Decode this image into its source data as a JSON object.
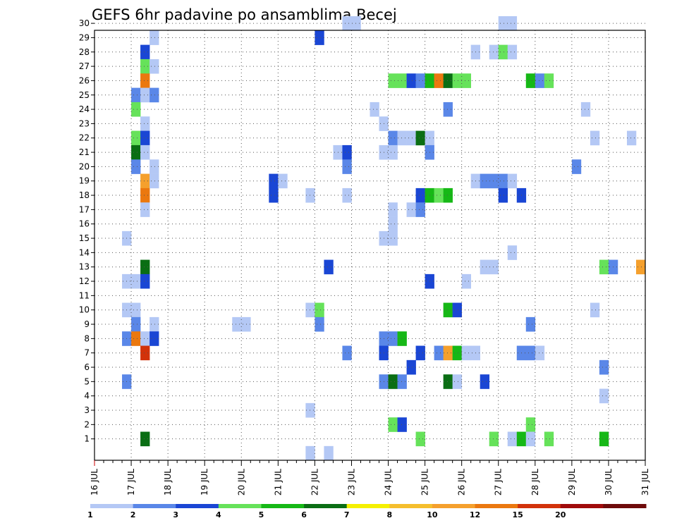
{
  "chart_data": {
    "type": "heatmap",
    "title": "GEFS 6hr padavine po ansamblima Becej",
    "y_categories": [
      "1",
      "2",
      "3",
      "4",
      "5",
      "6",
      "7",
      "8",
      "9",
      "10",
      "11",
      "12",
      "13",
      "14",
      "15",
      "16",
      "17",
      "18",
      "19",
      "20",
      "21",
      "22",
      "23",
      "24",
      "25",
      "26",
      "27",
      "28",
      "29",
      "30"
    ],
    "x_ticks": [
      "16 JUL",
      "17 JUL",
      "18 JUL",
      "19 JUL",
      "20 JUL",
      "21 JUL",
      "22 JUL",
      "23 JUL",
      "24 JUL",
      "25 JUL",
      "26 JUL",
      "27 JUL",
      "28 JUL",
      "29 JUL",
      "30 JUL",
      "31 JUL"
    ],
    "xlim": [
      16,
      31
    ],
    "grid": true,
    "legend": {
      "placement": "bottom",
      "labels": [
        "1",
        "2",
        "3",
        "4",
        "5",
        "6",
        "7",
        "8",
        "10",
        "12",
        "15",
        "20"
      ],
      "colors": [
        "#b4c8f5",
        "#5a87e8",
        "#1a46d4",
        "#66e25a",
        "#16b816",
        "#0a6e14",
        "#f5f000",
        "#f5be2d",
        "#f5a02d",
        "#eb780f",
        "#d2320a",
        "#a00a0a",
        "#6e0a0a"
      ]
    },
    "cells": [
      [
        30,
        22.75,
        1
      ],
      [
        30,
        23.0,
        1
      ],
      [
        30,
        27.0,
        1
      ],
      [
        30,
        27.25,
        1
      ],
      [
        29,
        17.5,
        1
      ],
      [
        29,
        22.0,
        3
      ],
      [
        28,
        17.25,
        3
      ],
      [
        28,
        26.25,
        1
      ],
      [
        28,
        26.75,
        1
      ],
      [
        28,
        27.0,
        4
      ],
      [
        28,
        27.25,
        1
      ],
      [
        27,
        17.25,
        4
      ],
      [
        27,
        17.5,
        1
      ],
      [
        26,
        17.25,
        12
      ],
      [
        26,
        24.0,
        4
      ],
      [
        26,
        24.25,
        4
      ],
      [
        26,
        24.5,
        3
      ],
      [
        26,
        24.75,
        2
      ],
      [
        26,
        25.0,
        5
      ],
      [
        26,
        25.25,
        12
      ],
      [
        26,
        25.5,
        6
      ],
      [
        26,
        25.75,
        4
      ],
      [
        26,
        26.0,
        4
      ],
      [
        26,
        27.75,
        5
      ],
      [
        26,
        28.0,
        2
      ],
      [
        26,
        28.25,
        4
      ],
      [
        25,
        17.0,
        2
      ],
      [
        25,
        17.25,
        1
      ],
      [
        25,
        17.5,
        2
      ],
      [
        24,
        17.0,
        4
      ],
      [
        24,
        23.5,
        1
      ],
      [
        24,
        25.5,
        2
      ],
      [
        24,
        29.25,
        1
      ],
      [
        23,
        17.25,
        1
      ],
      [
        23,
        23.75,
        1
      ],
      [
        22,
        17.0,
        4
      ],
      [
        22,
        17.25,
        3
      ],
      [
        22,
        24.0,
        2
      ],
      [
        22,
        24.25,
        1
      ],
      [
        22,
        24.5,
        1
      ],
      [
        22,
        24.75,
        6
      ],
      [
        22,
        25.0,
        1
      ],
      [
        22,
        29.5,
        1
      ],
      [
        22,
        30.5,
        1
      ],
      [
        21,
        17.0,
        6
      ],
      [
        21,
        17.25,
        1
      ],
      [
        21,
        22.5,
        1
      ],
      [
        21,
        22.75,
        3
      ],
      [
        21,
        23.75,
        1
      ],
      [
        21,
        24.0,
        1
      ],
      [
        21,
        25.0,
        2
      ],
      [
        20,
        17.0,
        2
      ],
      [
        20,
        17.5,
        1
      ],
      [
        20,
        22.75,
        2
      ],
      [
        20,
        29.0,
        2
      ],
      [
        19,
        17.25,
        10
      ],
      [
        19,
        17.5,
        1
      ],
      [
        19,
        20.75,
        3
      ],
      [
        19,
        21.0,
        1
      ],
      [
        19,
        26.25,
        1
      ],
      [
        19,
        26.5,
        2
      ],
      [
        19,
        26.75,
        2
      ],
      [
        19,
        27.0,
        2
      ],
      [
        19,
        27.25,
        1
      ],
      [
        18,
        17.25,
        12
      ],
      [
        18,
        20.75,
        3
      ],
      [
        18,
        21.75,
        1
      ],
      [
        18,
        22.75,
        1
      ],
      [
        18,
        24.75,
        3
      ],
      [
        18,
        25.0,
        5
      ],
      [
        18,
        25.25,
        4
      ],
      [
        18,
        25.5,
        5
      ],
      [
        18,
        27.0,
        3
      ],
      [
        18,
        27.5,
        3
      ],
      [
        17,
        17.25,
        1
      ],
      [
        17,
        24.0,
        1
      ],
      [
        17,
        24.5,
        1
      ],
      [
        17,
        24.75,
        2
      ],
      [
        16,
        24.0,
        1
      ],
      [
        15,
        16.75,
        1
      ],
      [
        15,
        23.75,
        1
      ],
      [
        15,
        24.0,
        1
      ],
      [
        14,
        27.25,
        1
      ],
      [
        13,
        17.25,
        6
      ],
      [
        13,
        22.25,
        3
      ],
      [
        13,
        26.5,
        1
      ],
      [
        13,
        26.75,
        1
      ],
      [
        13,
        29.75,
        4
      ],
      [
        13,
        30.0,
        2
      ],
      [
        13,
        30.75,
        10
      ],
      [
        12,
        16.75,
        1
      ],
      [
        12,
        17.0,
        1
      ],
      [
        12,
        17.25,
        3
      ],
      [
        12,
        25.0,
        3
      ],
      [
        12,
        26.0,
        1
      ],
      [
        10,
        16.75,
        1
      ],
      [
        10,
        17.0,
        1
      ],
      [
        10,
        21.75,
        1
      ],
      [
        10,
        22.0,
        4
      ],
      [
        10,
        25.5,
        5
      ],
      [
        10,
        25.75,
        3
      ],
      [
        10,
        29.5,
        1
      ],
      [
        9,
        17.0,
        2
      ],
      [
        9,
        17.5,
        1
      ],
      [
        9,
        19.75,
        1
      ],
      [
        9,
        20.0,
        1
      ],
      [
        9,
        22.0,
        2
      ],
      [
        9,
        27.75,
        2
      ],
      [
        8,
        16.75,
        2
      ],
      [
        8,
        17.0,
        12
      ],
      [
        8,
        17.25,
        1
      ],
      [
        8,
        17.5,
        3
      ],
      [
        8,
        23.75,
        2
      ],
      [
        8,
        24.0,
        2
      ],
      [
        8,
        24.25,
        5
      ],
      [
        7,
        17.25,
        15
      ],
      [
        7,
        22.75,
        2
      ],
      [
        7,
        23.75,
        3
      ],
      [
        7,
        24.75,
        3
      ],
      [
        7,
        25.25,
        2
      ],
      [
        7,
        25.5,
        10
      ],
      [
        7,
        25.75,
        5
      ],
      [
        7,
        26.0,
        1
      ],
      [
        7,
        26.25,
        1
      ],
      [
        7,
        27.5,
        2
      ],
      [
        7,
        27.75,
        2
      ],
      [
        7,
        28.0,
        1
      ],
      [
        6,
        24.5,
        3
      ],
      [
        6,
        29.75,
        2
      ],
      [
        5,
        16.75,
        2
      ],
      [
        5,
        23.75,
        2
      ],
      [
        5,
        24.0,
        6
      ],
      [
        5,
        24.25,
        2
      ],
      [
        5,
        25.5,
        6
      ],
      [
        5,
        25.75,
        1
      ],
      [
        5,
        26.5,
        3
      ],
      [
        4,
        29.75,
        1
      ],
      [
        3,
        21.75,
        1
      ],
      [
        2,
        24.0,
        4
      ],
      [
        2,
        24.25,
        3
      ],
      [
        2,
        27.75,
        4
      ],
      [
        1,
        17.25,
        6
      ],
      [
        1,
        24.75,
        4
      ],
      [
        1,
        26.75,
        4
      ],
      [
        1,
        27.25,
        1
      ],
      [
        1,
        27.5,
        5
      ],
      [
        1,
        27.75,
        1
      ],
      [
        1,
        28.25,
        4
      ],
      [
        1,
        29.75,
        5
      ],
      [
        0,
        21.75,
        1
      ],
      [
        0,
        22.25,
        1
      ]
    ]
  }
}
